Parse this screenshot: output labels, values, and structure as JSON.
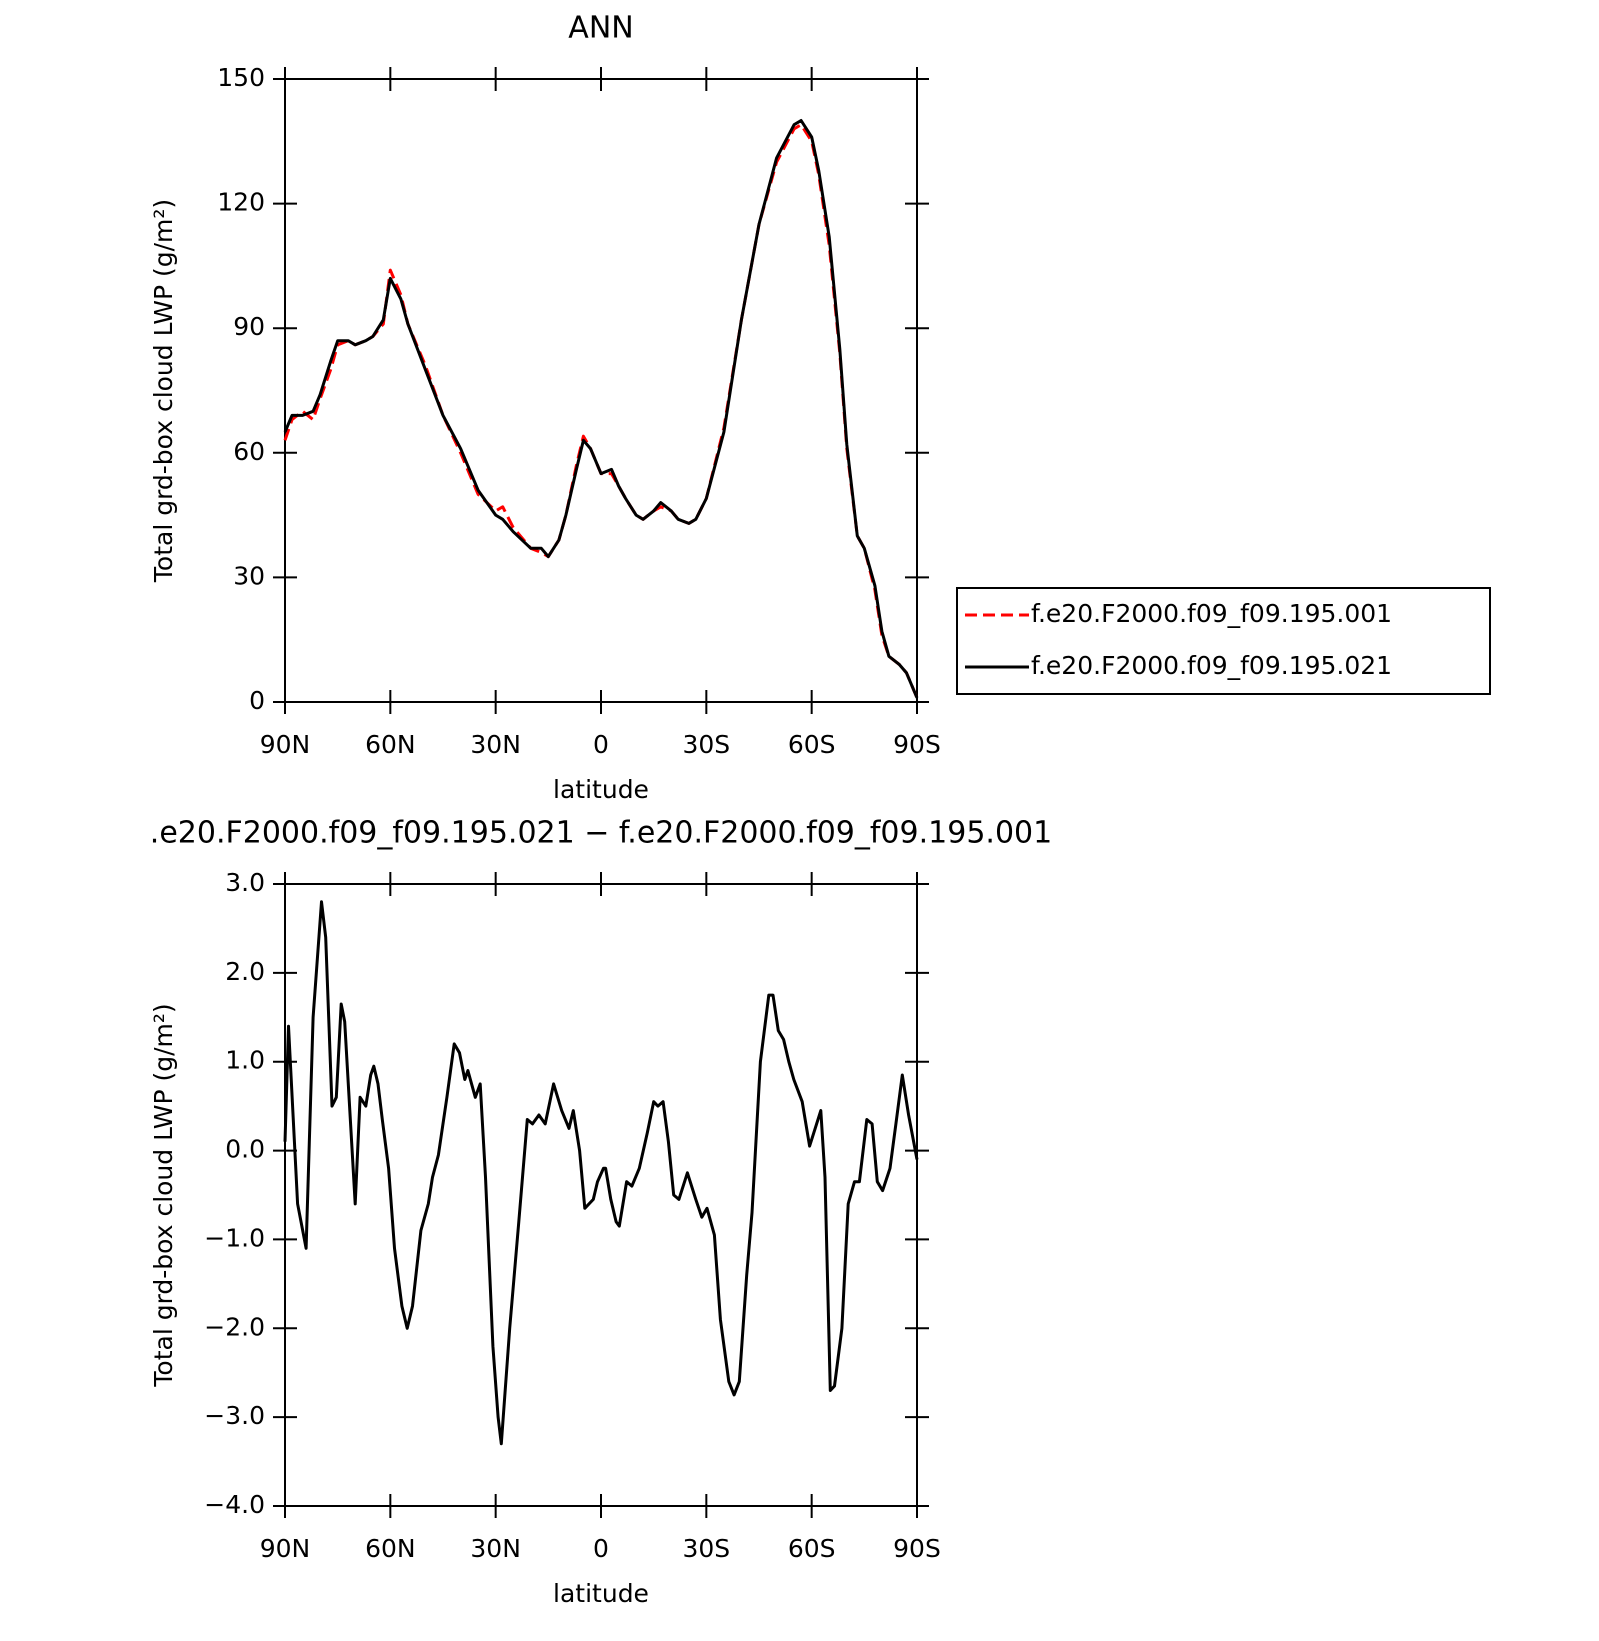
{
  "chart_data": [
    {
      "type": "line",
      "title": "ANN",
      "x_label": "latitude",
      "y_label": "Total grd-box cloud LWP (g/m²)",
      "x": [
        90,
        88,
        85,
        82,
        80,
        77,
        75,
        72,
        70,
        67,
        65,
        62,
        60,
        57,
        55,
        50,
        45,
        40,
        35,
        30,
        28,
        25,
        20,
        17,
        15,
        12,
        10,
        7,
        5,
        3,
        0,
        -3,
        -5,
        -7,
        -10,
        -12,
        -15,
        -17,
        -20,
        -22,
        -25,
        -27,
        -30,
        -35,
        -40,
        -45,
        -50,
        -55,
        -57,
        -60,
        -62,
        -65,
        -68,
        -70,
        -73,
        -75,
        -78,
        -80,
        -82,
        -85,
        -87,
        -90
      ],
      "series": [
        {
          "name": "f.e20.F2000.f09_f09.195.001",
          "color": "#ff0000",
          "dashed": true,
          "values": [
            63,
            68,
            70,
            68,
            73,
            80,
            86,
            87,
            86,
            87,
            88,
            91,
            104,
            98,
            91,
            81,
            69,
            60,
            50,
            46,
            47,
            42,
            37,
            36,
            35,
            39,
            45,
            57,
            64,
            61,
            55,
            55,
            52,
            49,
            45,
            44,
            46,
            47,
            46,
            44,
            43,
            44,
            49,
            66,
            92,
            115,
            130,
            138,
            139,
            135,
            127,
            110,
            84,
            61,
            40,
            37,
            27,
            16,
            11,
            9,
            7,
            1
          ]
        },
        {
          "name": "f.e20.F2000.f09_f09.195.021",
          "color": "#000000",
          "dashed": false,
          "values": [
            65,
            69,
            69,
            70,
            74,
            82,
            87,
            87,
            86,
            87,
            88,
            92,
            102,
            97,
            91,
            80,
            69,
            61,
            51,
            45,
            44,
            41,
            37,
            37,
            35,
            39,
            45,
            56,
            63,
            61,
            55,
            56,
            52,
            49,
            45,
            44,
            46,
            48,
            46,
            44,
            43,
            44,
            49,
            65,
            92,
            115,
            131,
            139,
            140,
            136,
            128,
            112,
            85,
            62,
            40,
            37,
            28,
            17,
            11,
            9,
            7,
            1
          ]
        }
      ],
      "xlim": [
        90,
        -90
      ],
      "xticks": [
        {
          "value": 90,
          "label": "90N"
        },
        {
          "value": 60,
          "label": "60N"
        },
        {
          "value": 30,
          "label": "30N"
        },
        0,
        {
          "value": -30,
          "label": "30S"
        },
        {
          "value": -60,
          "label": "60S"
        },
        {
          "value": -90,
          "label": "90S"
        }
      ],
      "ylim": [
        0,
        150
      ],
      "yticks": [
        0,
        30,
        60,
        90,
        120,
        150
      ],
      "legend": "right"
    },
    {
      "type": "line",
      "title": ".e20.F2000.f09_f09.195.021 − f.e20.F2000.f09_f09.195.001",
      "x_label": "latitude",
      "y_label": "Total grd-box cloud LWP (g/m²)",
      "x": [
        90,
        89,
        86.4,
        84,
        82,
        79.6,
        78.4,
        76.6,
        75.4,
        74,
        73,
        70,
        68.6,
        67,
        65.6,
        64.7,
        63.5,
        62.3,
        60.5,
        58.8,
        56.7,
        55.2,
        53.7,
        51.3,
        49.2,
        48,
        46.3,
        43.9,
        41.8,
        40.3,
        38.8,
        37.9,
        35.8,
        34.4,
        32.9,
        30.8,
        29.3,
        28.4,
        26,
        23.4,
        21,
        19.5,
        17.7,
        15.9,
        13.5,
        11.2,
        9.1,
        7.9,
        6.1,
        4.6,
        2.2,
        1,
        -0.7,
        -1.3,
        -2.8,
        -4.3,
        -5.2,
        -7.3,
        -8.8,
        -10.9,
        -13.2,
        -15,
        -16.2,
        -17.7,
        -19.2,
        -20.7,
        -22.2,
        -24.6,
        -27,
        -28.7,
        -30.2,
        -32.3,
        -34,
        -36.4,
        -37.9,
        -39.4,
        -41.5,
        -43,
        -45.4,
        -47.8,
        -49,
        -50.5,
        -52,
        -53.5,
        -54.9,
        -57.3,
        -59.4,
        -61.4,
        -62.6,
        -63.8,
        -65.3,
        -66.5,
        -68.6,
        -70.4,
        -72.2,
        -73.6,
        -75.7,
        -77.2,
        -78.7,
        -80.2,
        -82.3,
        -84,
        -85.8,
        -87.6,
        -90
      ],
      "color": "#000000",
      "values": [
        0.1,
        1.4,
        -0.6,
        -1.1,
        1.5,
        2.8,
        2.4,
        0.5,
        0.6,
        1.65,
        1.45,
        -0.6,
        0.6,
        0.5,
        0.85,
        0.95,
        0.75,
        0.35,
        -0.2,
        -1.1,
        -1.75,
        -2.0,
        -1.75,
        -0.9,
        -0.6,
        -0.3,
        -0.05,
        0.6,
        1.2,
        1.1,
        0.8,
        0.9,
        0.6,
        0.75,
        -0.3,
        -2.2,
        -3.0,
        -3.3,
        -2.0,
        -0.8,
        0.35,
        0.3,
        0.4,
        0.3,
        0.75,
        0.45,
        0.25,
        0.45,
        0.0,
        -0.65,
        -0.55,
        -0.35,
        -0.2,
        -0.2,
        -0.55,
        -0.8,
        -0.85,
        -0.35,
        -0.4,
        -0.2,
        0.2,
        0.55,
        0.5,
        0.55,
        0.1,
        -0.5,
        -0.55,
        -0.25,
        -0.55,
        -0.75,
        -0.65,
        -0.95,
        -1.9,
        -2.6,
        -2.75,
        -2.6,
        -1.4,
        -0.7,
        1.0,
        1.75,
        1.75,
        1.35,
        1.25,
        1.0,
        0.8,
        0.55,
        0.05,
        0.3,
        0.45,
        -0.3,
        -2.7,
        -2.65,
        -2.0,
        -0.6,
        -0.35,
        -0.35,
        0.35,
        0.3,
        -0.35,
        -0.45,
        -0.2,
        0.3,
        0.85,
        0.4,
        -0.1
      ],
      "xlim": [
        90,
        -90
      ],
      "xticks": [
        {
          "value": 90,
          "label": "90N"
        },
        {
          "value": 60,
          "label": "60N"
        },
        {
          "value": 30,
          "label": "30N"
        },
        0,
        {
          "value": -30,
          "label": "30S"
        },
        {
          "value": -60,
          "label": "60S"
        },
        {
          "value": -90,
          "label": "90S"
        }
      ],
      "ylim": [
        -4,
        3
      ],
      "yticks": [
        {
          "value": -4,
          "label": "−4.0"
        },
        {
          "value": -3,
          "label": "−3.0"
        },
        {
          "value": -2,
          "label": "−2.0"
        },
        {
          "value": -1,
          "label": "−1.0"
        },
        {
          "value": 0,
          "label": "0.0"
        },
        {
          "value": 1,
          "label": "1.0"
        },
        {
          "value": 2,
          "label": "2.0"
        },
        {
          "value": 3,
          "label": "3.0"
        }
      ]
    }
  ]
}
